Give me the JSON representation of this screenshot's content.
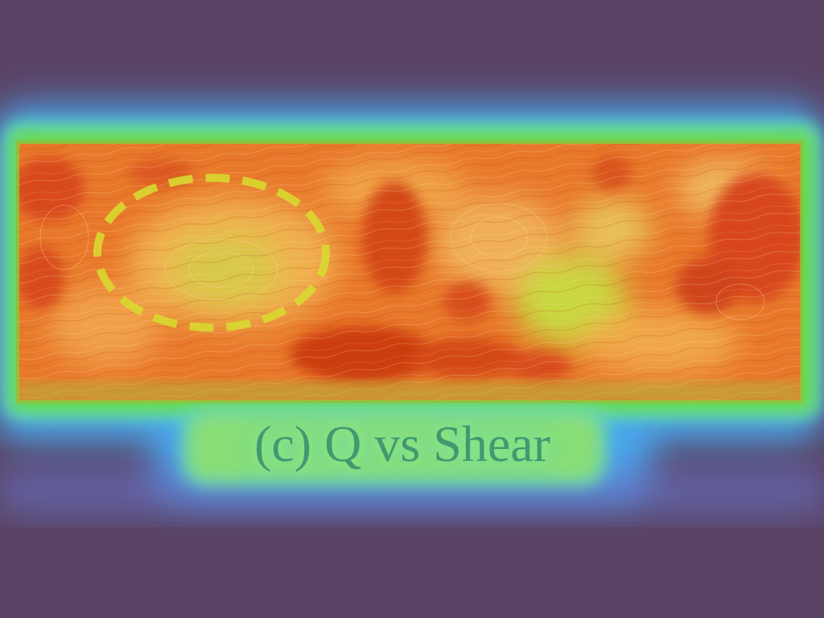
{
  "figure": {
    "caption": "(c) Q vs Shear",
    "colors": {
      "background": "#5a4466",
      "outer_glow": "#4aa8f0",
      "glow_green": "#5fdc3c",
      "field_orange": "#e8641e",
      "field_hot": "#c8360c",
      "field_light": "#f0a040",
      "field_yellow": "#c8d83c",
      "highlight_ellipse": "#d8d830",
      "caption_text": "#3f9a72"
    }
  }
}
